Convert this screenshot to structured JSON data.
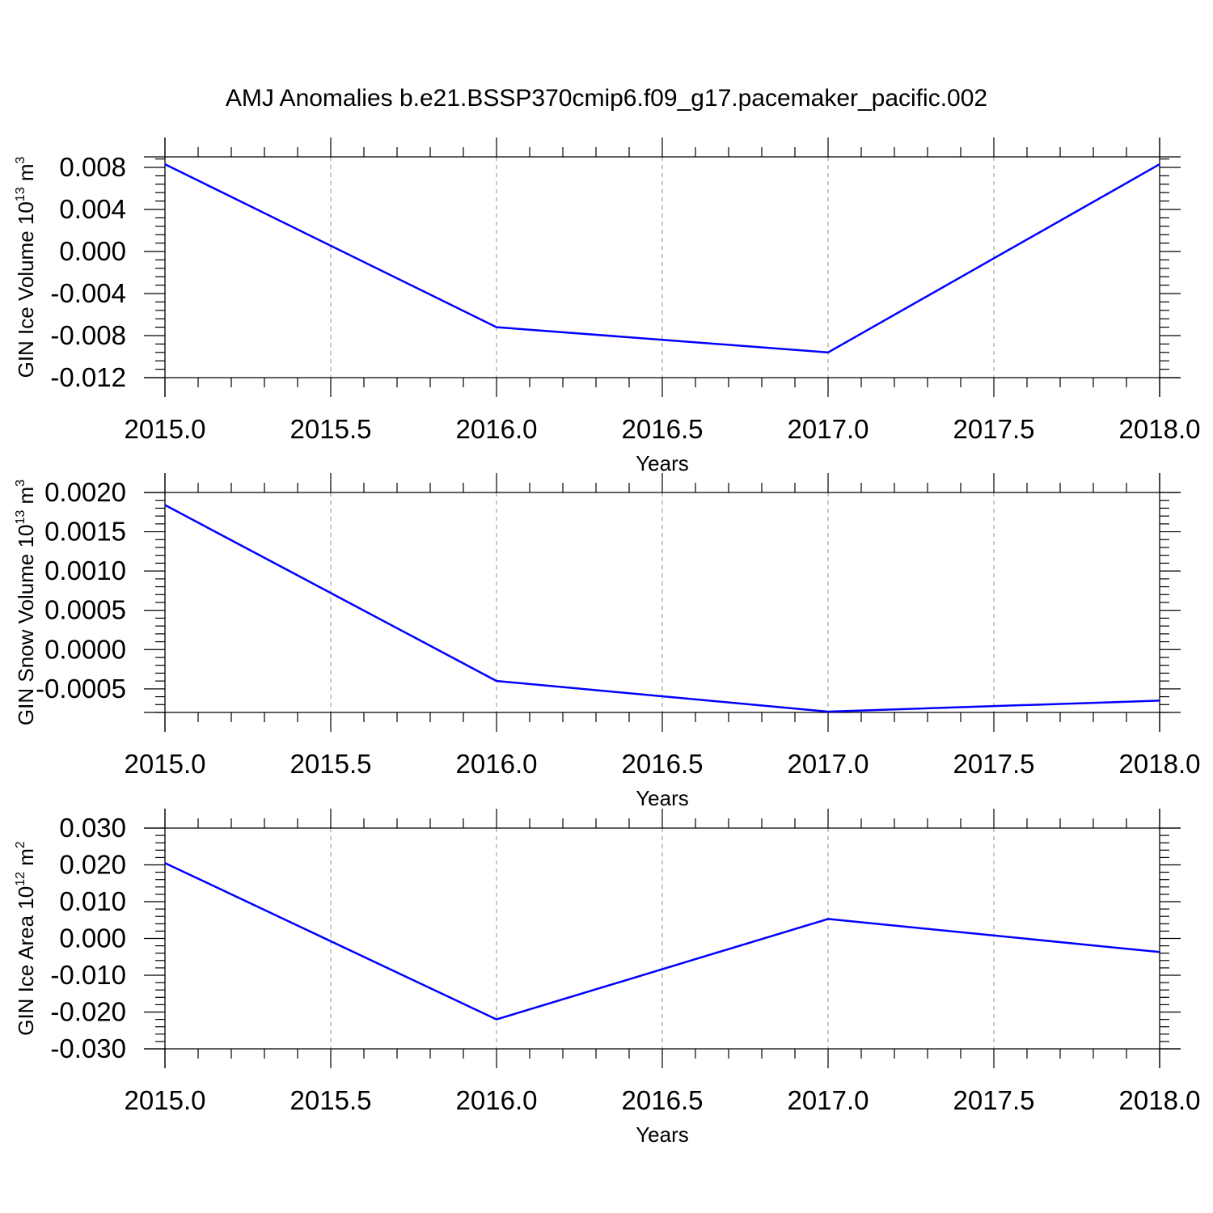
{
  "figure": {
    "title": "AMJ Anomalies b.e21.BSSP370cmip6.f09_g17.pacemaker_pacific.002"
  },
  "colors": {
    "series": "#0000ff",
    "axis": "#000000",
    "grid": "#a0a0a0"
  },
  "chart_data": [
    {
      "type": "line",
      "title": "AMJ Anomalies b.e21.BSSP370cmip6.f09_g17.pacemaker_pacific.002",
      "xlabel": "Years",
      "ylabel": "GIN Ice Volume 10",
      "ylabel_exp": "13",
      "ylabel_unit": " m",
      "ylabel_unit_exp": "3",
      "x": [
        2015.0,
        2016.0,
        2017.0,
        2018.0
      ],
      "y": [
        0.0083,
        -0.0072,
        -0.0096,
        0.0083
      ],
      "xlim": [
        2015.0,
        2018.0
      ],
      "ylim": [
        -0.012,
        0.009
      ],
      "xticks": [
        "2015.0",
        "2015.5",
        "2016.0",
        "2016.5",
        "2017.0",
        "2017.5",
        "2018.0"
      ],
      "yticks": [
        {
          "v": 0.008,
          "label": "0.008"
        },
        {
          "v": 0.004,
          "label": "0.004"
        },
        {
          "v": 0.0,
          "label": "0.000"
        },
        {
          "v": -0.004,
          "label": "-0.004"
        },
        {
          "v": -0.008,
          "label": "-0.008"
        },
        {
          "v": -0.012,
          "label": "-0.012"
        }
      ],
      "grid": "vertical-dashed"
    },
    {
      "type": "line",
      "xlabel": "Years",
      "ylabel": "GIN Snow Volume 10",
      "ylabel_exp": "13",
      "ylabel_unit": " m",
      "ylabel_unit_exp": "3",
      "x": [
        2015.0,
        2016.0,
        2017.0,
        2018.0
      ],
      "y": [
        0.00184,
        -0.0004,
        -0.00079,
        -0.00065
      ],
      "xlim": [
        2015.0,
        2018.0
      ],
      "ylim": [
        -0.0008,
        0.002
      ],
      "xticks": [
        "2015.0",
        "2015.5",
        "2016.0",
        "2016.5",
        "2017.0",
        "2017.5",
        "2018.0"
      ],
      "yticks": [
        {
          "v": 0.002,
          "label": "0.0020"
        },
        {
          "v": 0.0015,
          "label": "0.0015"
        },
        {
          "v": 0.001,
          "label": "0.0010"
        },
        {
          "v": 0.0005,
          "label": "0.0005"
        },
        {
          "v": 0.0,
          "label": "0.0000"
        },
        {
          "v": -0.0005,
          "label": "-0.0005"
        }
      ],
      "grid": "vertical-dashed"
    },
    {
      "type": "line",
      "xlabel": "Years",
      "ylabel": "GIN Ice Area 10",
      "ylabel_exp": "12",
      "ylabel_unit": " m",
      "ylabel_unit_exp": "2",
      "x": [
        2015.0,
        2016.0,
        2017.0,
        2018.0
      ],
      "y": [
        0.0205,
        -0.022,
        0.0053,
        -0.0037
      ],
      "xlim": [
        2015.0,
        2018.0
      ],
      "ylim": [
        -0.03,
        0.03
      ],
      "xticks": [
        "2015.0",
        "2015.5",
        "2016.0",
        "2016.5",
        "2017.0",
        "2017.5",
        "2018.0"
      ],
      "yticks": [
        {
          "v": 0.03,
          "label": "0.030"
        },
        {
          "v": 0.02,
          "label": "0.020"
        },
        {
          "v": 0.01,
          "label": "0.010"
        },
        {
          "v": 0.0,
          "label": "0.000"
        },
        {
          "v": -0.01,
          "label": "-0.010"
        },
        {
          "v": -0.02,
          "label": "-0.020"
        },
        {
          "v": -0.03,
          "label": "-0.030"
        }
      ],
      "grid": "vertical-dashed"
    }
  ]
}
